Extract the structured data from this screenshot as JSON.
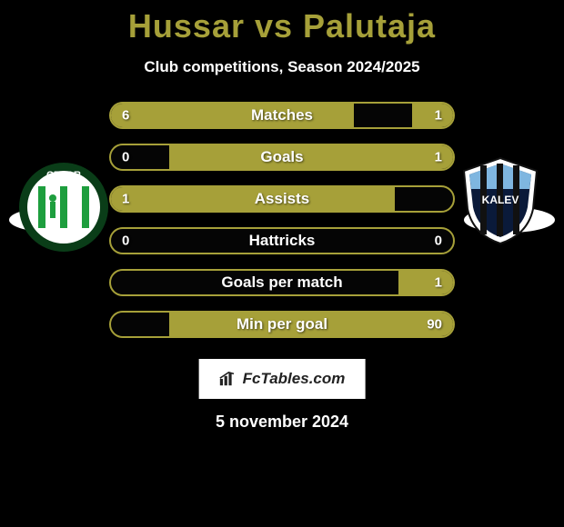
{
  "title_color": "#a6a039",
  "left_color": "#a6a039",
  "right_color": "#a6a039",
  "title": "Hussar vs Palutaja",
  "subtitle": "Club competitions, Season 2024/2025",
  "stats": [
    {
      "label": "Matches",
      "left_val": "6",
      "right_val": "1",
      "left_pct": 71,
      "right_pct": 12
    },
    {
      "label": "Goals",
      "left_val": "0",
      "right_val": "1",
      "left_pct": 0,
      "right_pct": 83
    },
    {
      "label": "Assists",
      "left_val": "1",
      "right_val": "",
      "left_pct": 83,
      "right_pct": 0
    },
    {
      "label": "Hattricks",
      "left_val": "0",
      "right_val": "0",
      "left_pct": 0,
      "right_pct": 0
    },
    {
      "label": "Goals per match",
      "left_val": "",
      "right_val": "1",
      "left_pct": 0,
      "right_pct": 16
    },
    {
      "label": "Min per goal",
      "left_val": "",
      "right_val": "90",
      "left_pct": 0,
      "right_pct": 83
    }
  ],
  "brand": "FcTables.com",
  "date": "5 november 2024",
  "crest_left": {
    "ring_text": "CFLOR",
    "bg": "#ffffff",
    "stripes": "#1e9e3e",
    "ring": "#0a3d18"
  },
  "crest_right": {
    "shield_outer": "#ffffff",
    "shield_inner_top": "#7fb6e0",
    "shield_inner_bottom": "#0a1a3a",
    "stripe": "#111111",
    "text": "KALEV"
  }
}
